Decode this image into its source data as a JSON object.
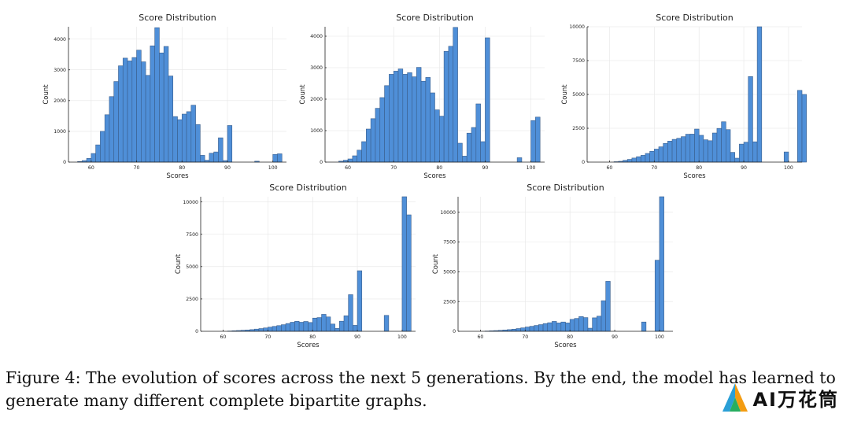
{
  "figure": {
    "caption_line1": "Figure 4: The evolution of scores across the next 5 generations. By the end, the model has learned to",
    "caption_line2": "generate many different complete bipartite graphs.",
    "watermark_text": "AI万花筒"
  },
  "chart_data": [
    {
      "type": "bar",
      "title": "Score Distribution",
      "xlabel": "Scores",
      "ylabel": "Count",
      "xlim": [
        55,
        103
      ],
      "ylim": [
        0,
        4400
      ],
      "xticks": [
        60,
        70,
        80,
        90,
        100
      ],
      "yticks": [
        0,
        1000,
        2000,
        3000,
        4000
      ],
      "bin_start": 56,
      "bin_width": 1,
      "values": [
        0,
        20,
        50,
        120,
        280,
        560,
        1000,
        1540,
        2130,
        2620,
        3130,
        3380,
        3290,
        3400,
        3640,
        3260,
        2820,
        3780,
        4370,
        3550,
        3760,
        2800,
        1480,
        1380,
        1560,
        1640,
        1850,
        1220,
        220,
        60,
        290,
        330,
        790,
        50,
        1190,
        0,
        0,
        0,
        0,
        0,
        30,
        0,
        0,
        0,
        250,
        270
      ]
    },
    {
      "type": "bar",
      "title": "Score Distribution",
      "xlabel": "Scores",
      "ylabel": "Count",
      "xlim": [
        55,
        103
      ],
      "ylim": [
        0,
        4300
      ],
      "xticks": [
        60,
        70,
        80,
        90,
        100
      ],
      "yticks": [
        0,
        1000,
        2000,
        3000,
        4000
      ],
      "bin_start": 56,
      "bin_width": 1,
      "values": [
        0,
        0,
        30,
        60,
        100,
        200,
        380,
        650,
        1050,
        1380,
        1710,
        2050,
        2430,
        2790,
        2890,
        2960,
        2790,
        2840,
        2710,
        3010,
        2570,
        2690,
        2200,
        1660,
        1460,
        3520,
        3680,
        4280,
        600,
        190,
        920,
        1100,
        1850,
        650,
        3950,
        0,
        0,
        0,
        0,
        0,
        0,
        140,
        0,
        0,
        1320,
        1430
      ]
    },
    {
      "type": "bar",
      "title": "Score Distribution",
      "xlabel": "Scores",
      "ylabel": "Count",
      "xlim": [
        55,
        103
      ],
      "ylim": [
        0,
        10000
      ],
      "xticks": [
        60,
        70,
        80,
        90,
        100
      ],
      "yticks": [
        0,
        2500,
        5000,
        7500,
        10000
      ],
      "bin_start": 56,
      "bin_width": 1,
      "values": [
        0,
        0,
        0,
        0,
        0,
        30,
        60,
        130,
        200,
        300,
        400,
        500,
        640,
        800,
        960,
        1130,
        1380,
        1550,
        1680,
        1760,
        1880,
        2060,
        2070,
        2440,
        1980,
        1650,
        1580,
        2150,
        2490,
        2980,
        2400,
        720,
        290,
        1330,
        1470,
        6320,
        1500,
        10000,
        0,
        0,
        0,
        0,
        0,
        750,
        0,
        0,
        5300,
        5000
      ]
    },
    {
      "type": "bar",
      "title": "Score Distribution",
      "xlabel": "Scores",
      "ylabel": "Count",
      "xlim": [
        55,
        103
      ],
      "ylim": [
        0,
        10400
      ],
      "xticks": [
        60,
        70,
        80,
        90,
        100
      ],
      "yticks": [
        0,
        2500,
        5000,
        7500,
        10000
      ],
      "bin_start": 56,
      "bin_width": 1,
      "values": [
        0,
        0,
        0,
        0,
        0,
        20,
        40,
        60,
        80,
        100,
        130,
        170,
        210,
        260,
        320,
        380,
        440,
        510,
        600,
        700,
        770,
        700,
        760,
        680,
        1020,
        1060,
        1310,
        1110,
        560,
        220,
        780,
        1200,
        2830,
        460,
        4680,
        0,
        0,
        0,
        0,
        0,
        1230,
        0,
        0,
        0,
        10400,
        9000
      ]
    },
    {
      "type": "bar",
      "title": "Score Distribution",
      "xlabel": "Scores",
      "ylabel": "Count",
      "xlim": [
        55,
        103
      ],
      "ylim": [
        0,
        11300
      ],
      "xticks": [
        60,
        70,
        80,
        90,
        100
      ],
      "yticks": [
        0,
        2500,
        5000,
        7500,
        10000
      ],
      "bin_start": 56,
      "bin_width": 1,
      "values": [
        0,
        0,
        0,
        0,
        0,
        20,
        40,
        60,
        80,
        110,
        140,
        180,
        230,
        290,
        360,
        420,
        490,
        560,
        650,
        720,
        830,
        700,
        780,
        700,
        1000,
        1080,
        1240,
        1150,
        260,
        1130,
        1270,
        2570,
        4200,
        0,
        0,
        0,
        0,
        0,
        0,
        0,
        780,
        0,
        0,
        5970,
        11300
      ]
    }
  ]
}
